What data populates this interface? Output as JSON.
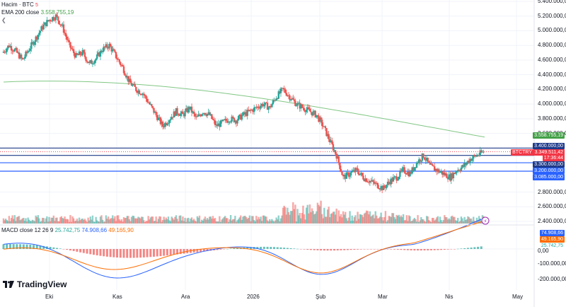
{
  "legend": {
    "main": "Hacim · BTC",
    "ema": "EMA 200 close",
    "ema_value": "3.558.755,19",
    "macd": "MACD close 12 26 9",
    "macd_v1": "25.742,75",
    "macd_v2": "74.908,66",
    "macd_v3": "49.165,90"
  },
  "price_axis": {
    "ticks": [
      "5.400.000,00",
      "5.200.000,00",
      "5.000.000,00",
      "4.800.000,00",
      "4.600.000,00",
      "4.400.000,00",
      "4.200.000,00",
      "4.000.000,00",
      "3.800.000,00",
      "3.600.000,00",
      "2.800.000,00",
      "2.600.000,00",
      "2.400.000,00"
    ],
    "badges": {
      "ema": "3.558.755,19",
      "r1": "3.400.000,00",
      "price": "3.349.511,42",
      "countdown": "17:36:44",
      "r2": "3.300.000,00",
      "r3": "3.200.000,00",
      "r4": "3.085.000,00",
      "symbol": "BTCTRY"
    }
  },
  "macd_axis": {
    "v1": "74.908,66",
    "v2": "49.165,90",
    "v3": "25.742,75",
    "zero": "0,00",
    "m100": "-100.000,00",
    "m200": "-200.000,00"
  },
  "time_axis": [
    "Eki",
    "Kas",
    "Ara",
    "2026",
    "Şub",
    "Mar",
    "Nis",
    "May"
  ],
  "brand": {
    "name": "TradingView"
  },
  "colors": {
    "up": "#26a69a",
    "down": "#ef5350",
    "ema": "#81c784",
    "macd": "#2962ff",
    "signal": "#ff6d00",
    "level": "#1e3a8a"
  },
  "chart_data": {
    "type": "candlestick",
    "symbol": "BTCTRY",
    "ema_200": 3558755.19,
    "last_price": 3349511.42,
    "horizontal_levels": [
      3400000,
      3300000,
      3200000,
      3085000
    ],
    "close_path": [
      4700000,
      4800000,
      4720000,
      4600000,
      4750000,
      4900000,
      5050000,
      5150000,
      5200000,
      5050000,
      4800000,
      4650000,
      4700000,
      4550000,
      4620000,
      4750000,
      4800000,
      4650000,
      4500000,
      4300000,
      4200000,
      4150000,
      4000000,
      3850000,
      3700000,
      3800000,
      3900000,
      3850000,
      3950000,
      3800000,
      3900000,
      3850000,
      3700000,
      3750000,
      3800000,
      3780000,
      3850000,
      3900000,
      3950000,
      4000000,
      3950000,
      4100000,
      4200000,
      4100000,
      4000000,
      3950000,
      3900000,
      3850000,
      3700000,
      3500000,
      3300000,
      3000000,
      3050000,
      3100000,
      3000000,
      2950000,
      2900000,
      2850000,
      2950000,
      3000000,
      3100000,
      3050000,
      3200000,
      3300000,
      3150000,
      3100000,
      3050000,
      3000000,
      3100000,
      3150000,
      3250000,
      3300000,
      3349511
    ]
  }
}
